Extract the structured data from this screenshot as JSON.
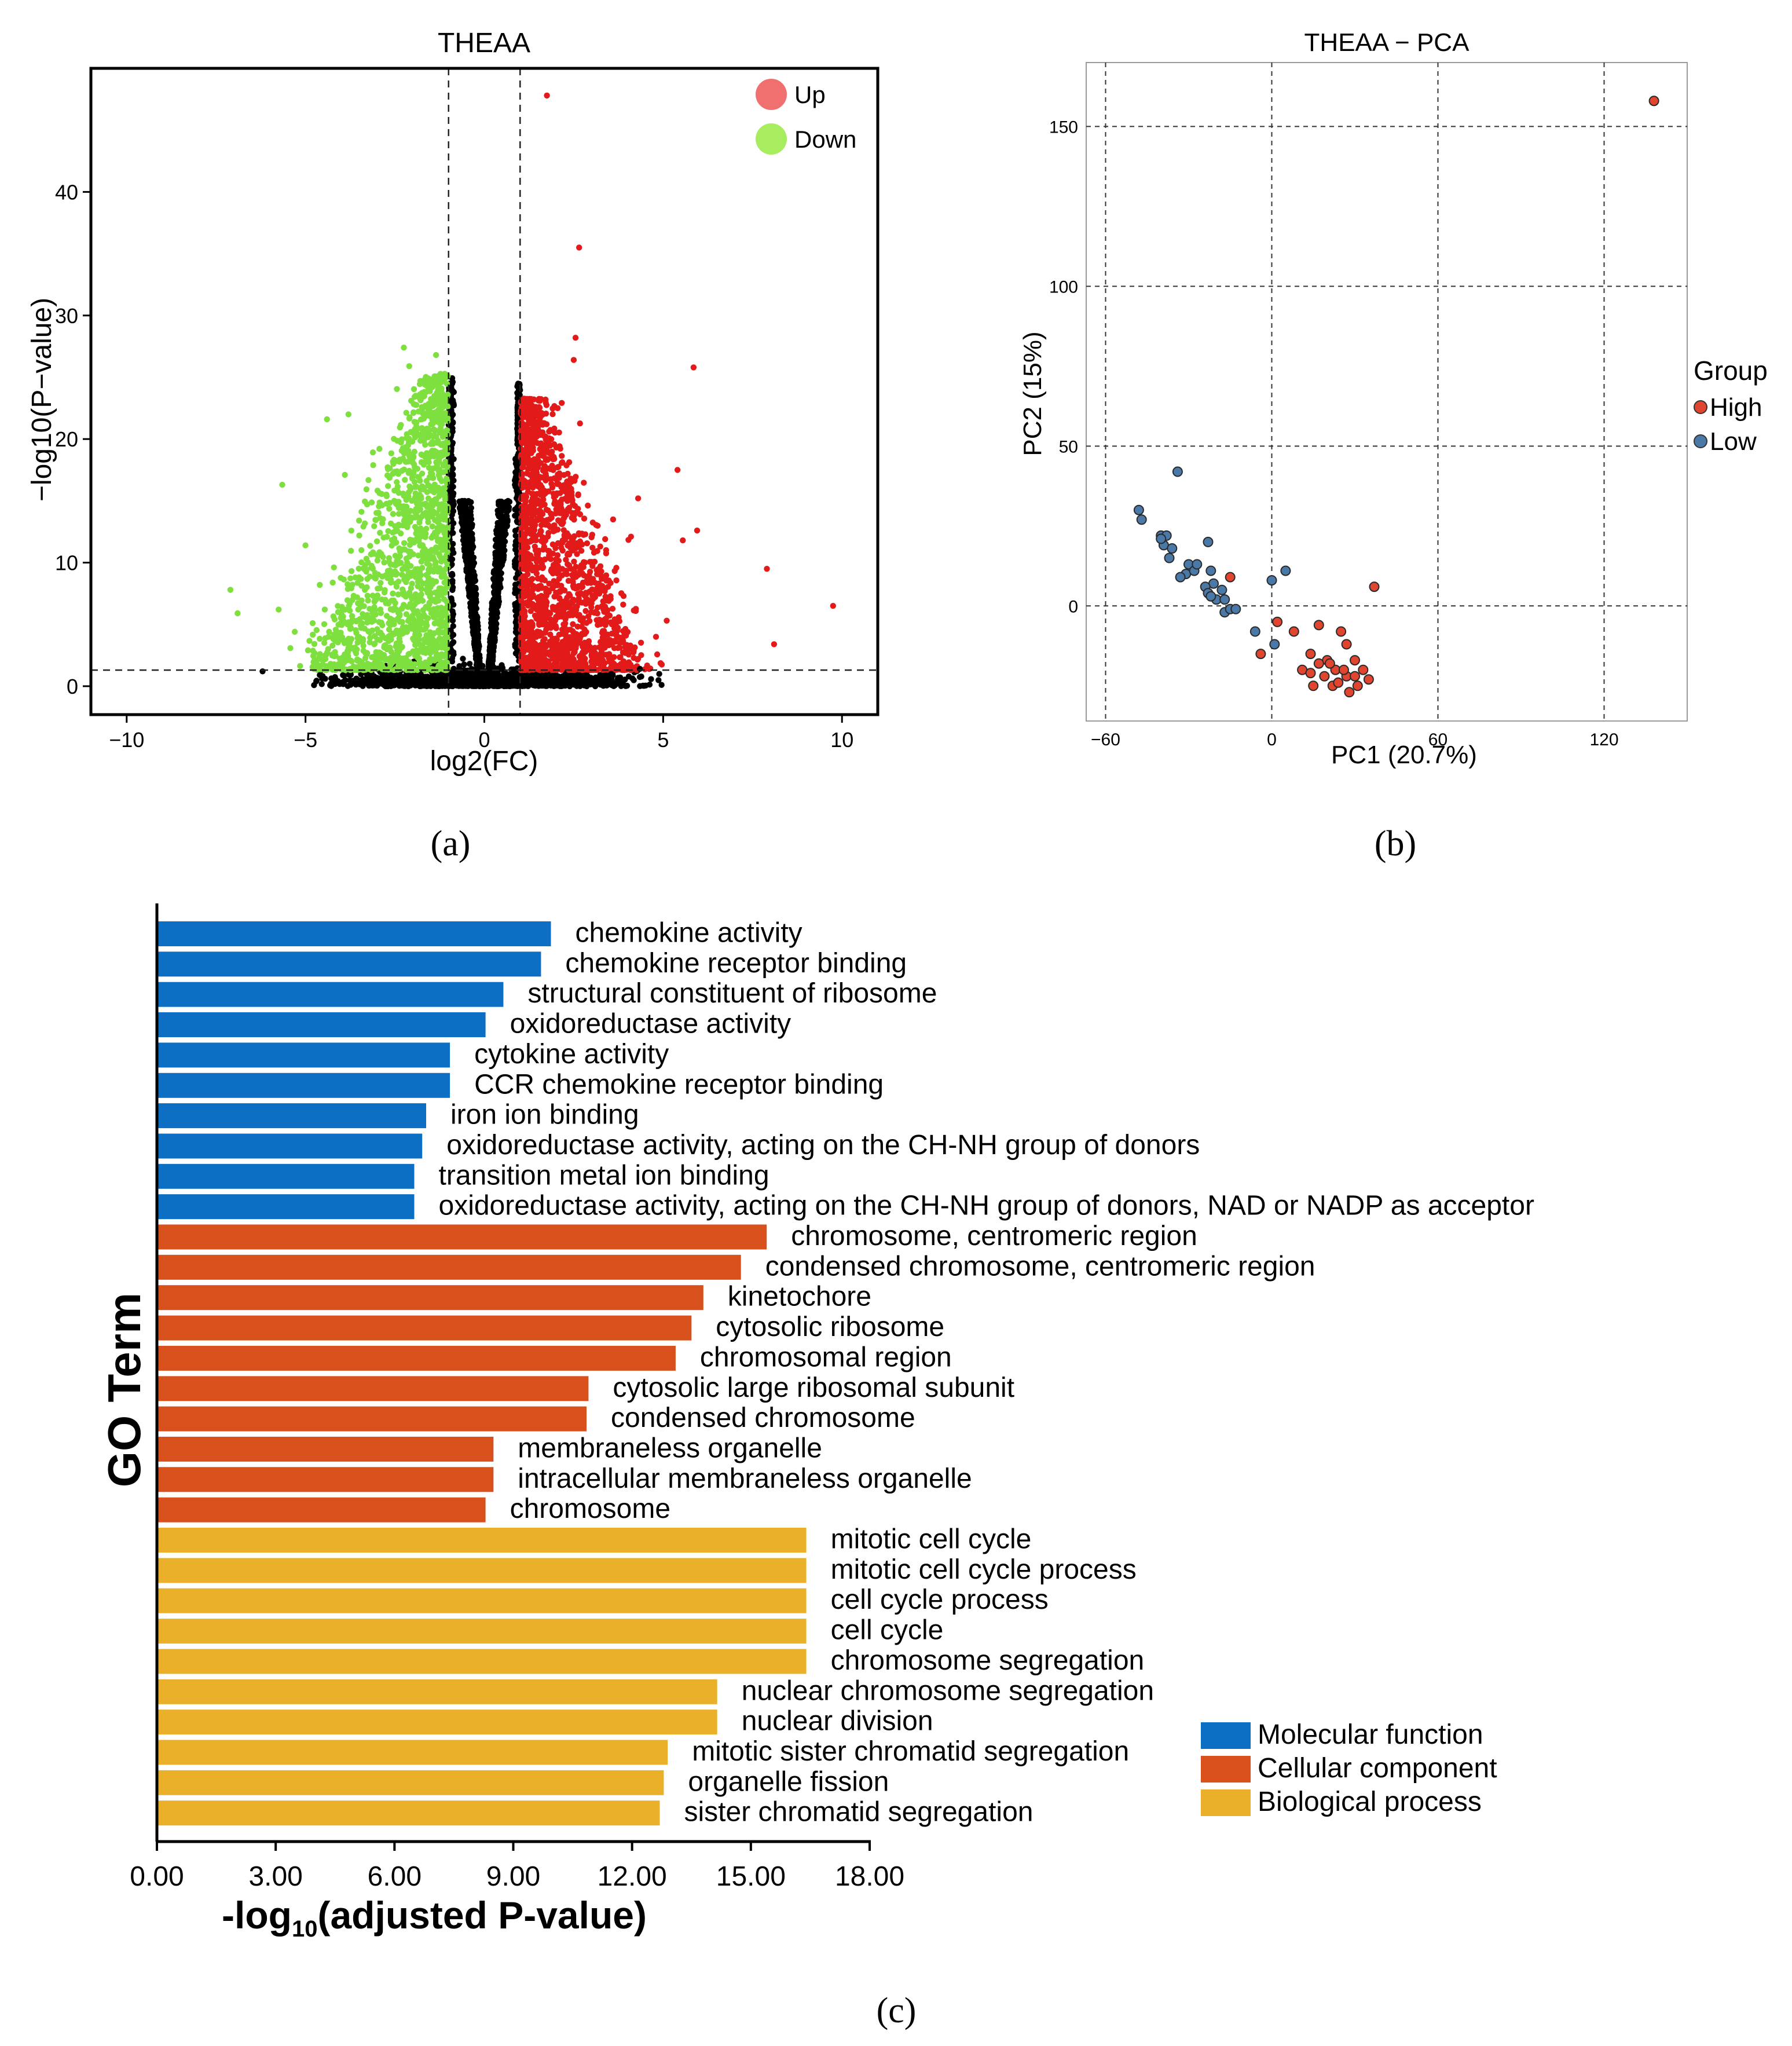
{
  "figure": {
    "panel_labels": [
      "(a)",
      "(b)",
      "(c)"
    ]
  },
  "chart_data": [
    {
      "id": "volcano",
      "type": "scatter",
      "title": "THEAA",
      "xlabel": "log2(FC)",
      "ylabel": "−log10(P−value)",
      "xlim": [
        -11,
        11
      ],
      "ylim": [
        -2.3,
        50
      ],
      "xticks": [
        -10,
        -5,
        0,
        5,
        10
      ],
      "xtick_labels": [
        "−10",
        "−5",
        "0",
        "5",
        "10"
      ],
      "yticks": [
        0,
        10,
        20,
        30,
        40
      ],
      "ytick_labels": [
        "0",
        "10",
        "20",
        "30",
        "40"
      ],
      "thresholds": {
        "fc": [
          -1,
          1
        ],
        "p": 1.3
      },
      "legend": {
        "position": "top-right",
        "entries": [
          {
            "label": "Up",
            "color": "#f07070"
          },
          {
            "label": "Down",
            "color": "#a8ec60"
          }
        ]
      },
      "colors": {
        "up": "#e21a1a",
        "down": "#7ee03e",
        "ns": "#000000"
      },
      "series": [
        {
          "name": "Up (outliers)",
          "points": [
            [
              1.75,
              47.8
            ],
            [
              2.65,
              35.5
            ],
            [
              2.55,
              28.2
            ],
            [
              2.5,
              26.4
            ],
            [
              5.85,
              25.8
            ],
            [
              5.4,
              17.5
            ],
            [
              5.95,
              12.6
            ],
            [
              5.55,
              11.8
            ],
            [
              7.9,
              9.5
            ],
            [
              9.75,
              6.5
            ],
            [
              8.1,
              3.4
            ],
            [
              4.3,
              15.2
            ],
            [
              2.05,
              22.5
            ],
            [
              1.55,
              23.2
            ],
            [
              4.1,
              12.1
            ],
            [
              3.6,
              13.5
            ],
            [
              5.1,
              5.3
            ],
            [
              4.8,
              4.0
            ]
          ]
        },
        {
          "name": "Down (outliers)",
          "points": [
            [
              -5.65,
              16.3
            ],
            [
              -7.1,
              7.8
            ],
            [
              -6.9,
              5.9
            ],
            [
              -5.75,
              6.2
            ],
            [
              -4.4,
              21.6
            ],
            [
              -3.8,
              22.0
            ],
            [
              -5.0,
              11.4
            ],
            [
              -4.8,
              5.1
            ],
            [
              -5.3,
              4.4
            ],
            [
              -2.25,
              27.4
            ],
            [
              -1.35,
              26.8
            ],
            [
              -2.1,
              25.9
            ],
            [
              -4.6,
              8.2
            ],
            [
              -3.9,
              17.1
            ]
          ]
        },
        {
          "name": "Not significant (outliers)",
          "points": [
            [
              -6.2,
              1.2
            ],
            [
              -4.6,
              0.9
            ],
            [
              -4.45,
              0.6
            ],
            [
              -4.7,
              0.4
            ],
            [
              3.55,
              1.0
            ],
            [
              3.8,
              0.7
            ],
            [
              4.35,
              1.4
            ],
            [
              3.3,
              0.5
            ]
          ]
        }
      ],
      "density": {
        "ns_cloud_count": 3800,
        "down_region_count": 1500,
        "up_region_count": 1650
      }
    },
    {
      "id": "pca",
      "type": "scatter",
      "title": "THEAA − PCA",
      "xlabel": "PC1 (20.7%)",
      "ylabel": "PC2 (15%)",
      "xlim": [
        -67,
        150
      ],
      "ylim": [
        -36,
        170
      ],
      "xticks": [
        -60,
        0,
        60,
        120
      ],
      "xtick_labels": [
        "−60",
        "0",
        "60",
        "120"
      ],
      "yticks": [
        0,
        50,
        100,
        150
      ],
      "yticks_labels": [
        "0",
        "50",
        "100",
        "150"
      ],
      "grid": true,
      "legend": {
        "title": "Group",
        "position": "right",
        "entries": [
          {
            "label": "High",
            "color": "#e0452f"
          },
          {
            "label": "Low",
            "color": "#4a79a8"
          }
        ]
      },
      "series": [
        {
          "name": "High",
          "color": "#e0452f",
          "points": [
            [
              138,
              158
            ],
            [
              37,
              6
            ],
            [
              -15,
              9
            ],
            [
              2,
              -5
            ],
            [
              -4,
              -15
            ],
            [
              8,
              -8
            ],
            [
              17,
              -6
            ],
            [
              14,
              -15
            ],
            [
              20,
              -17
            ],
            [
              23,
              -20
            ],
            [
              25,
              -8
            ],
            [
              27,
              -12
            ],
            [
              30,
              -17
            ],
            [
              33,
              -20
            ],
            [
              31,
              -25
            ],
            [
              27,
              -22
            ],
            [
              28,
              -27
            ],
            [
              22,
              -25
            ],
            [
              24,
              -24
            ],
            [
              17,
              -18
            ],
            [
              11,
              -20
            ],
            [
              19,
              -22
            ],
            [
              14,
              -21
            ],
            [
              21,
              -18
            ],
            [
              26,
              -20
            ],
            [
              30,
              -22
            ],
            [
              15,
              -25
            ],
            [
              35,
              -23
            ]
          ]
        },
        {
          "name": "Low",
          "color": "#4a79a8",
          "points": [
            [
              -34,
              42
            ],
            [
              -48,
              30
            ],
            [
              -47,
              27
            ],
            [
              -40,
              22
            ],
            [
              -38,
              22
            ],
            [
              -39,
              19
            ],
            [
              -37,
              15
            ],
            [
              -30,
              13
            ],
            [
              -31,
              10
            ],
            [
              -28,
              11
            ],
            [
              -23,
              20
            ],
            [
              -22,
              11
            ],
            [
              -21,
              7
            ],
            [
              -24,
              6
            ],
            [
              -23,
              4
            ],
            [
              -20,
              2
            ],
            [
              -17,
              2
            ],
            [
              -17,
              -2
            ],
            [
              -15,
              -1
            ],
            [
              -13,
              -1
            ],
            [
              -6,
              -8
            ],
            [
              -18,
              5
            ],
            [
              1,
              -12
            ],
            [
              0,
              8
            ],
            [
              5,
              11
            ],
            [
              -33,
              9
            ],
            [
              -22,
              3
            ],
            [
              -27,
              13
            ],
            [
              -40,
              21
            ],
            [
              -36,
              18
            ]
          ]
        }
      ]
    },
    {
      "id": "go",
      "type": "bar",
      "orientation": "horizontal",
      "xlabel_main": "-log",
      "xlabel_sub": "10",
      "xlabel_tail": "(adjusted P-value)",
      "ylabel": "GO Term",
      "xlim": [
        0,
        18
      ],
      "xticks": [
        0,
        3,
        6,
        9,
        12,
        15,
        18
      ],
      "xtick_labels": [
        "0.00",
        "3.00",
        "6.00",
        "9.00",
        "12.00",
        "15.00",
        "18.00"
      ],
      "categories": [
        "chemokine activity",
        "chemokine receptor binding",
        "structural constituent of ribosome",
        "oxidoreductase activity",
        "cytokine activity",
        "CCR chemokine receptor binding",
        "iron ion binding",
        "oxidoreductase activity, acting on the CH-NH group of donors",
        "transition metal ion binding",
        "oxidoreductase activity, acting on the CH-NH group of donors, NAD or NADP as acceptor",
        "chromosome, centromeric region",
        "condensed chromosome, centromeric region",
        "kinetochore",
        "cytosolic ribosome",
        "chromosomal region",
        "cytosolic large ribosomal subunit",
        "condensed chromosome",
        "membraneless organelle",
        "intracellular membraneless organelle",
        "chromosome",
        "mitotic cell cycle",
        "mitotic cell cycle process",
        "cell cycle process",
        "cell cycle",
        "chromosome segregation",
        "nuclear chromosome segregation",
        "nuclear division",
        "mitotic sister chromatid segregation",
        "organelle fission",
        "sister chromatid segregation"
      ],
      "values": [
        9.95,
        9.7,
        8.75,
        8.3,
        7.4,
        7.4,
        6.8,
        6.7,
        6.5,
        6.5,
        15.4,
        14.75,
        13.8,
        13.5,
        13.1,
        10.9,
        10.85,
        8.5,
        8.5,
        8.3,
        16.4,
        16.4,
        16.4,
        16.4,
        16.4,
        14.15,
        14.15,
        12.9,
        12.8,
        12.7
      ],
      "groups": [
        "MF",
        "MF",
        "MF",
        "MF",
        "MF",
        "MF",
        "MF",
        "MF",
        "MF",
        "MF",
        "CC",
        "CC",
        "CC",
        "CC",
        "CC",
        "CC",
        "CC",
        "CC",
        "CC",
        "CC",
        "BP",
        "BP",
        "BP",
        "BP",
        "BP",
        "BP",
        "BP",
        "BP",
        "BP",
        "BP"
      ],
      "group_colors": {
        "MF": "#0c6fc4",
        "CC": "#d8501c",
        "BP": "#ebb02a"
      },
      "legend": {
        "position": "bottom-right",
        "entries": [
          {
            "key": "MF",
            "label": "Molecular function",
            "color": "#0c6fc4"
          },
          {
            "key": "CC",
            "label": "Cellular component",
            "color": "#d8501c"
          },
          {
            "key": "BP",
            "label": "Biological process",
            "color": "#ebb02a"
          }
        ]
      }
    }
  ]
}
